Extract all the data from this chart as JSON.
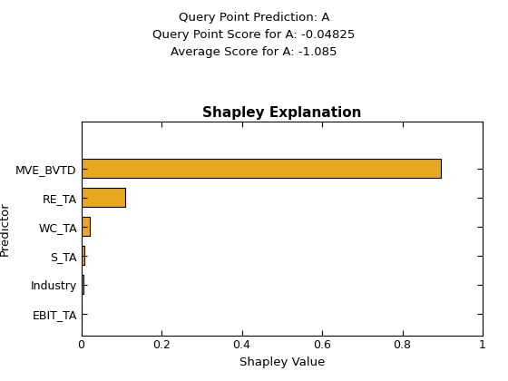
{
  "title": "Shapley Explanation",
  "subtitle_lines": [
    "Query Point Prediction: A",
    "Query Point Score for A: -0.04825",
    "Average Score for A: -1.085"
  ],
  "xlabel": "Shapley Value",
  "ylabel": "Predictor",
  "categories": [
    "MVE_BVTD",
    "RE_TA",
    "WC_TA",
    "S_TA",
    "Industry",
    "EBIT_TA"
  ],
  "values": [
    0.895,
    0.11,
    0.022,
    0.008,
    0.005,
    0.0
  ],
  "bar_color": "#E8A820",
  "edge_color": "#000000",
  "xlim": [
    0,
    1
  ],
  "xticks": [
    0.0,
    0.2,
    0.4,
    0.6,
    0.8,
    1.0
  ],
  "xtick_labels": [
    "0",
    "0.2",
    "0.4",
    "0.6",
    "0.8",
    "1"
  ],
  "figsize": [
    5.6,
    4.2
  ],
  "dpi": 100,
  "title_fontsize": 11,
  "subtitle_fontsize": 9.5,
  "axis_label_fontsize": 9.5,
  "tick_fontsize": 9
}
